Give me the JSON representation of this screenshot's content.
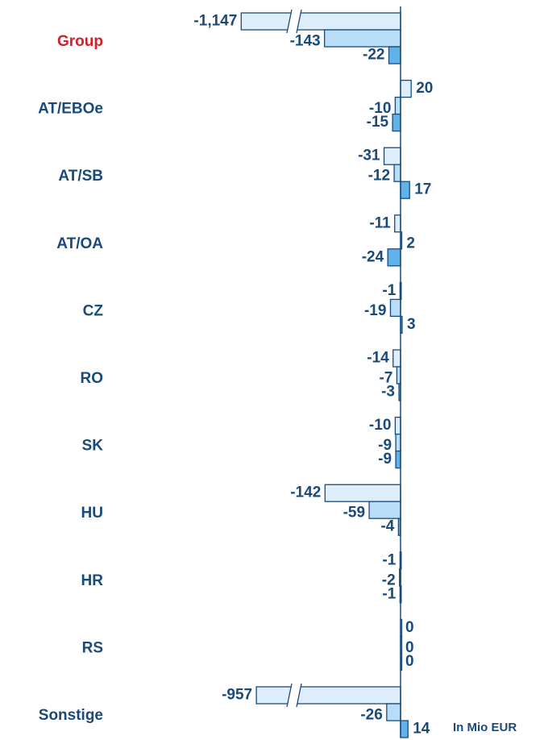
{
  "chart_data": {
    "type": "hbar",
    "categories": [
      "Group",
      "AT/EBOe",
      "AT/SB",
      "AT/OA",
      "CZ",
      "RO",
      "SK",
      "HU",
      "HR",
      "RS",
      "Sonstige"
    ],
    "category_colors": [
      "#d0202a",
      "#1a4a7a",
      "#1a4a7a",
      "#1a4a7a",
      "#1a4a7a",
      "#1a4a7a",
      "#1a4a7a",
      "#1a4a7a",
      "#1a4a7a",
      "#1a4a7a",
      "#1a4a7a"
    ],
    "series": [
      {
        "color": "#ddedfa",
        "values": [
          -1147,
          20,
          -31,
          -11,
          -1,
          -14,
          -10,
          -142,
          -1,
          0,
          -957
        ],
        "value_labels": [
          "-1,147",
          "20",
          "-31",
          "-11",
          "-1",
          "-14",
          "-10",
          "-142",
          "-1",
          "0",
          "-957"
        ]
      },
      {
        "color": "#b8ddf6",
        "values": [
          -143,
          -10,
          -12,
          2,
          -19,
          -7,
          -9,
          -59,
          -2,
          0,
          -26
        ]
      },
      {
        "color": "#5fb2ea",
        "values": [
          -22,
          -15,
          17,
          -24,
          3,
          -3,
          -9,
          -4,
          -1,
          0,
          14
        ]
      }
    ],
    "xlim": [
      -150,
      30
    ],
    "annotation": "In Mio EUR"
  }
}
